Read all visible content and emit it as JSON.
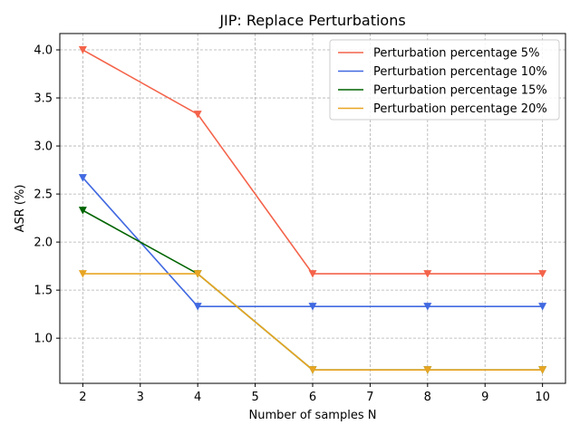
{
  "chart_data": {
    "type": "line",
    "title": "JIP: Replace Perturbations",
    "xlabel": "Number of samples N",
    "ylabel": "ASR (%)",
    "x": [
      2,
      4,
      6,
      8,
      10
    ],
    "xlim": [
      1.6,
      10.4
    ],
    "ylim": [
      0.53,
      4.17
    ],
    "xticks": [
      "2",
      "3",
      "4",
      "5",
      "6",
      "7",
      "8",
      "9",
      "10"
    ],
    "yticks": [
      "1.0",
      "1.5",
      "2.0",
      "2.5",
      "3.0",
      "3.5",
      "4.0"
    ],
    "grid": true,
    "legend_position": "top-right",
    "marker": "triangle-down",
    "series": [
      {
        "name": "Perturbation percentage 5%",
        "color": "#f4634a",
        "values": [
          4.0,
          3.33,
          1.67,
          1.67,
          1.67
        ]
      },
      {
        "name": "Perturbation percentage 10%",
        "color": "#4169e1",
        "values": [
          2.67,
          1.33,
          1.33,
          1.33,
          1.33
        ]
      },
      {
        "name": "Perturbation percentage 15%",
        "color": "#006400",
        "values": [
          2.33,
          1.67,
          0.67,
          0.67,
          0.67
        ]
      },
      {
        "name": "Perturbation percentage 20%",
        "color": "#e8a523",
        "values": [
          1.67,
          1.67,
          0.67,
          0.67,
          0.67
        ]
      }
    ]
  }
}
